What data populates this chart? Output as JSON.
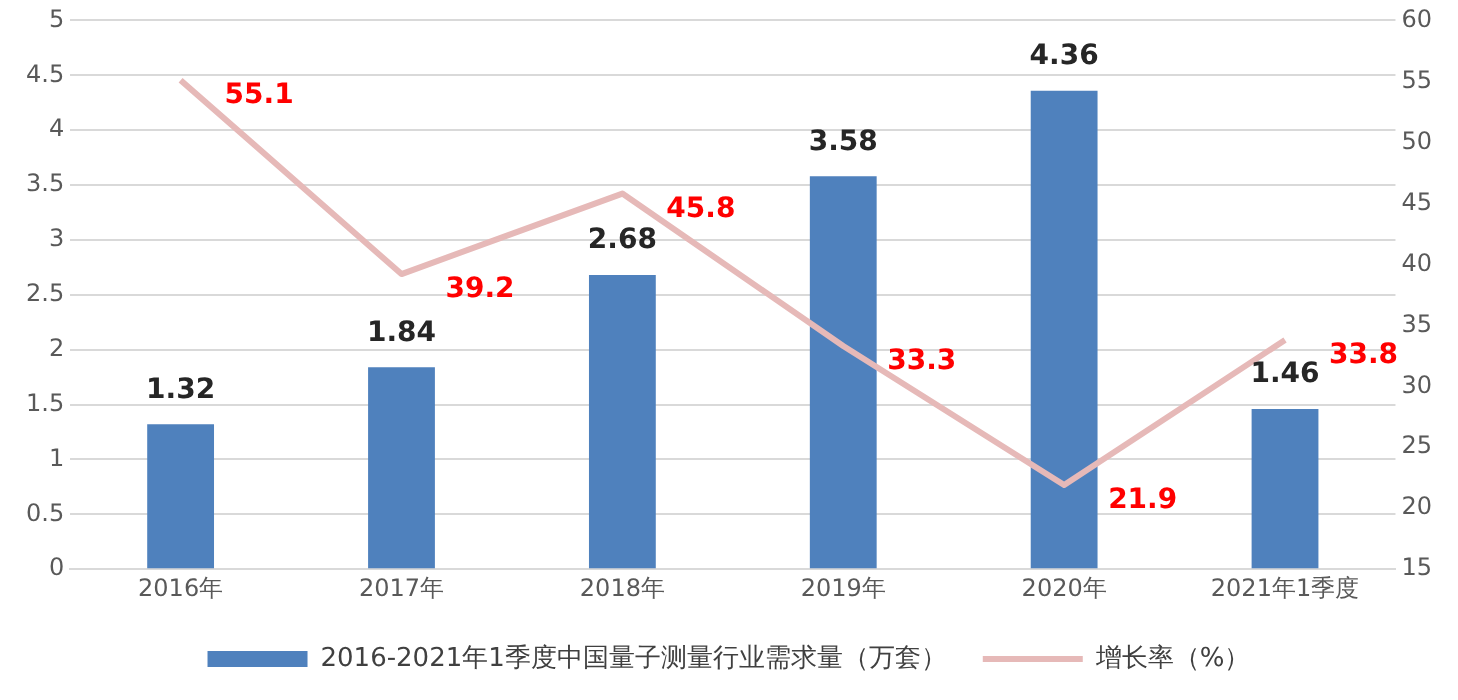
{
  "chart_data": {
    "type": "bar",
    "categories": [
      "2016年",
      "2017年",
      "2018年",
      "2019年",
      "2020年",
      "2021年1季度"
    ],
    "series": [
      {
        "name": "2016-2021年1季度中国量子测量行业需求量（万套）",
        "color": "#4f81bd",
        "values": [
          1.32,
          1.84,
          2.68,
          3.58,
          4.36,
          1.46
        ]
      },
      {
        "name": "增长率（%）",
        "type": "line",
        "axis": "y2",
        "color": "#e6b9b8",
        "values": [
          55.1,
          39.2,
          45.8,
          33.3,
          21.9,
          33.8
        ]
      }
    ],
    "ylim": [
      0,
      5
    ],
    "yticks": [
      0,
      0.5,
      1,
      1.5,
      2,
      2.5,
      3,
      3.5,
      4,
      4.5,
      5
    ],
    "y2lim": [
      15,
      60
    ],
    "y2ticks": [
      15,
      20,
      25,
      30,
      35,
      40,
      45,
      50,
      55,
      60
    ],
    "grid": "y",
    "legend": "bottom",
    "marker": "none",
    "line_style": "solid",
    "data_labels": true
  }
}
